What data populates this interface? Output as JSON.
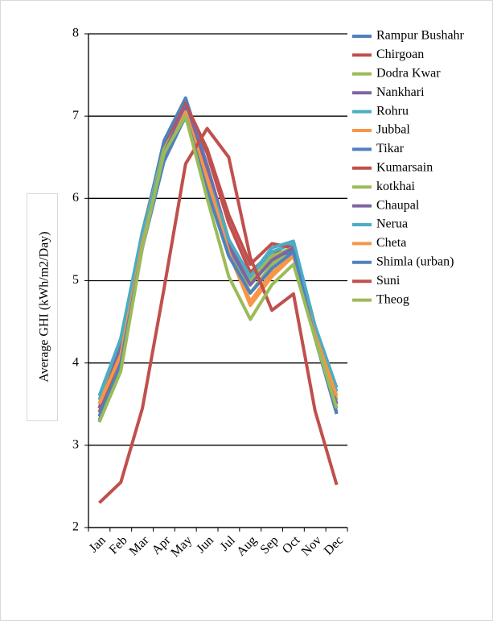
{
  "chart_data": {
    "type": "line",
    "y_label": "Average GHI (kWh/m2/Day)",
    "categories": [
      "Jan",
      "Feb",
      "Mar",
      "Apr",
      "May",
      "Jun",
      "Jul",
      "Aug",
      "Sep",
      "Oct",
      "Nov",
      "Dec"
    ],
    "ylim": [
      2,
      8
    ],
    "yticks": [
      2,
      3,
      4,
      5,
      6,
      7,
      8
    ],
    "grid": true,
    "series": [
      {
        "name": "Rampur Bushahr",
        "color": "#4f81bd",
        "values": [
          3.45,
          4.2,
          5.55,
          6.6,
          7.22,
          6.3,
          5.45,
          4.95,
          5.3,
          5.4,
          4.4,
          3.45
        ]
      },
      {
        "name": "Chirgoan",
        "color": "#c0504d",
        "values": [
          3.4,
          4.1,
          5.5,
          6.65,
          7.15,
          6.55,
          5.7,
          5.1,
          5.35,
          5.35,
          4.3,
          3.5
        ]
      },
      {
        "name": "Dodra Kwar",
        "color": "#9bbb59",
        "values": [
          3.5,
          4.25,
          5.6,
          6.65,
          7.1,
          6.2,
          5.4,
          4.85,
          5.2,
          5.4,
          4.4,
          3.55
        ]
      },
      {
        "name": "Nankhari",
        "color": "#8064a2",
        "values": [
          3.45,
          4.2,
          5.55,
          6.6,
          7.2,
          6.4,
          5.5,
          5.0,
          5.3,
          5.4,
          4.35,
          3.5
        ]
      },
      {
        "name": "Rohru",
        "color": "#4bacc6",
        "values": [
          3.55,
          4.3,
          5.6,
          6.6,
          7.0,
          6.3,
          5.5,
          5.0,
          5.35,
          5.45,
          4.45,
          3.65
        ]
      },
      {
        "name": "Jubbal",
        "color": "#f79646",
        "values": [
          3.45,
          4.05,
          5.45,
          6.5,
          7.05,
          6.2,
          5.35,
          4.75,
          5.1,
          5.3,
          4.35,
          3.55
        ]
      },
      {
        "name": "Tikar",
        "color": "#4f81bd",
        "values": [
          3.35,
          4.15,
          5.55,
          6.7,
          7.22,
          6.4,
          5.4,
          4.95,
          5.3,
          5.35,
          4.3,
          3.4
        ]
      },
      {
        "name": "Kumarsain",
        "color": "#c0504d",
        "values": [
          3.45,
          4.1,
          5.5,
          6.6,
          7.15,
          6.6,
          5.8,
          5.2,
          5.45,
          5.4,
          4.35,
          3.5
        ]
      },
      {
        "name": "kotkhai",
        "color": "#9bbb59",
        "values": [
          3.5,
          4.2,
          5.55,
          6.6,
          7.05,
          6.3,
          5.5,
          5.0,
          5.3,
          5.4,
          4.4,
          3.55
        ]
      },
      {
        "name": "Chaupal",
        "color": "#8064a2",
        "values": [
          3.45,
          4.2,
          5.5,
          6.55,
          7.1,
          6.35,
          5.45,
          4.95,
          5.25,
          5.4,
          4.35,
          3.5
        ]
      },
      {
        "name": "Nerua",
        "color": "#4bacc6",
        "values": [
          3.6,
          4.3,
          5.55,
          6.55,
          6.98,
          6.25,
          5.5,
          5.05,
          5.4,
          5.48,
          4.45,
          3.7
        ]
      },
      {
        "name": "Cheta",
        "color": "#f79646",
        "values": [
          3.5,
          4.1,
          5.45,
          6.5,
          7.05,
          6.25,
          5.35,
          4.7,
          5.05,
          5.3,
          4.35,
          3.6
        ]
      },
      {
        "name": "Shimla (urban)",
        "color": "#4f81bd",
        "values": [
          3.3,
          4.0,
          5.4,
          6.45,
          7.0,
          6.1,
          5.3,
          4.85,
          5.15,
          5.35,
          4.3,
          3.38
        ]
      },
      {
        "name": "Suni",
        "color": "#c0504d",
        "values": [
          2.3,
          2.55,
          3.45,
          4.9,
          6.42,
          6.85,
          6.5,
          5.28,
          4.64,
          4.84,
          3.42,
          2.52
        ]
      },
      {
        "name": "Theog",
        "color": "#9bbb59",
        "values": [
          3.28,
          3.9,
          5.4,
          6.55,
          7.0,
          6.0,
          5.05,
          4.53,
          4.95,
          5.2,
          4.3,
          3.45
        ]
      }
    ]
  }
}
